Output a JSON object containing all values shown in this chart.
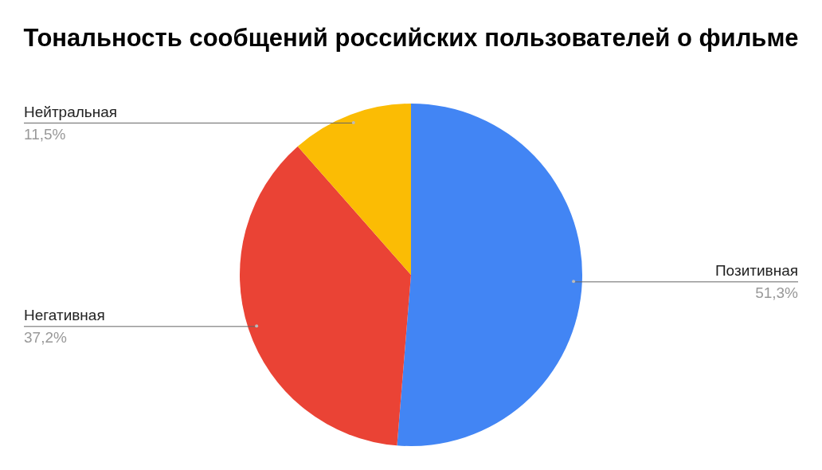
{
  "chart_data": {
    "type": "pie",
    "title": "Тональность сообщений российских пользователей о фильме",
    "categories": [
      "Позитивная",
      "Негативная",
      "Нейтральная"
    ],
    "values": [
      51.3,
      37.2,
      11.5
    ],
    "colors": [
      "#4285f4",
      "#ea4335",
      "#fbbc04"
    ],
    "value_labels": [
      "51,3%",
      "37,2%",
      "11,5%"
    ],
    "legend": false
  }
}
